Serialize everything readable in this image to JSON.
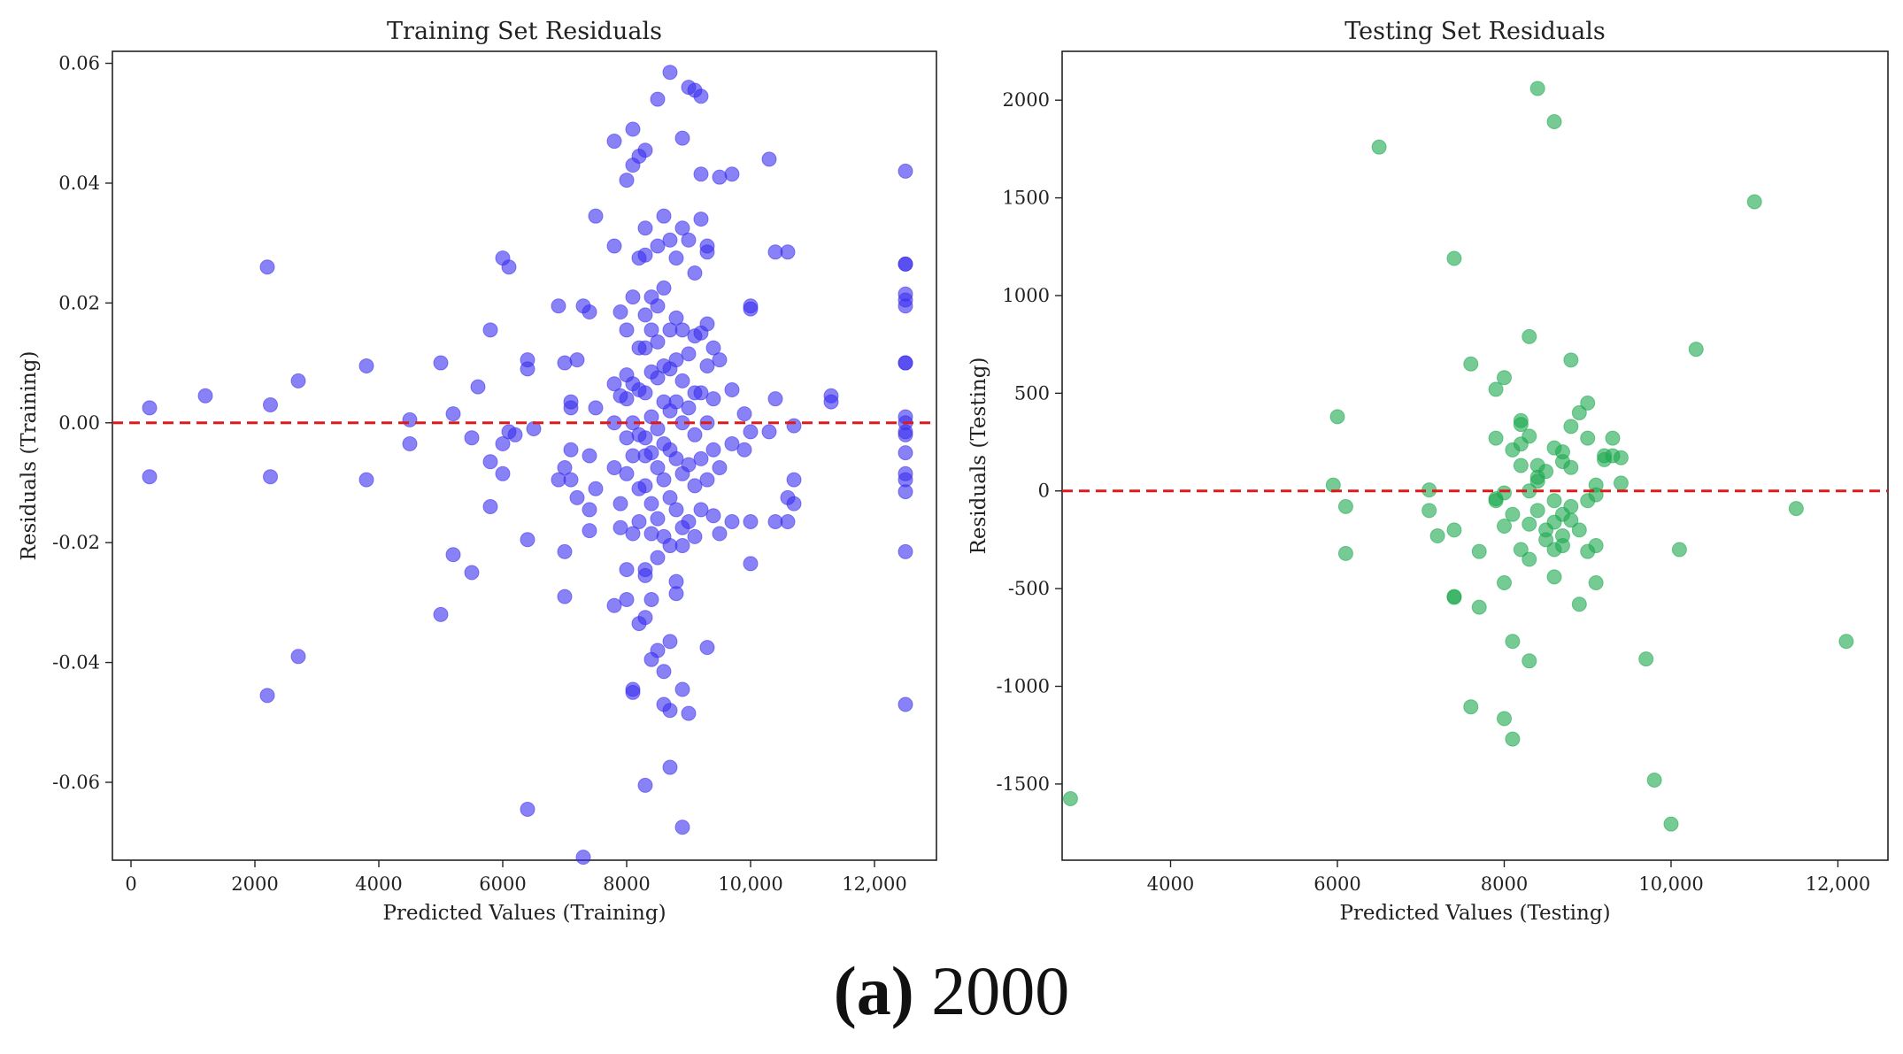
{
  "chart_data": [
    {
      "type": "scatter",
      "title": "Training Set Residuals",
      "xlabel": "Predicted Values (Training)",
      "ylabel": "Residuals (Training)",
      "xlim": [
        -300,
        13000
      ],
      "ylim": [
        -0.073,
        0.062
      ],
      "xticks": [
        0,
        2000,
        4000,
        6000,
        8000,
        10000,
        12000
      ],
      "xtick_labels": [
        "0",
        "2000",
        "4000",
        "6000",
        "8000",
        "10,000",
        "12,000"
      ],
      "yticks": [
        0.06,
        0.04,
        0.02,
        0.0,
        -0.02,
        -0.04,
        -0.06
      ],
      "ytick_labels": [
        "0.06",
        "0.04",
        "0.02",
        "0.00",
        "-0.02",
        "-0.04",
        "-0.06"
      ],
      "reference_line": 0,
      "color": "#3a2ff0",
      "line_color": "#e01a1a",
      "points": [
        [
          300,
          0.0025
        ],
        [
          300,
          -0.009
        ],
        [
          1200,
          0.0045
        ],
        [
          2200,
          0.026
        ],
        [
          2250,
          0.003
        ],
        [
          2250,
          -0.009
        ],
        [
          2200,
          -0.0455
        ],
        [
          2700,
          0.007
        ],
        [
          2700,
          -0.039
        ],
        [
          3800,
          0.0095
        ],
        [
          3800,
          -0.0095
        ],
        [
          4500,
          0.0005
        ],
        [
          4500,
          -0.0035
        ],
        [
          5000,
          0.01
        ],
        [
          5000,
          -0.032
        ],
        [
          5200,
          0.0015
        ],
        [
          5200,
          -0.022
        ],
        [
          5500,
          -0.0025
        ],
        [
          5500,
          -0.025
        ],
        [
          5600,
          0.006
        ],
        [
          5800,
          0.0155
        ],
        [
          5800,
          -0.0065
        ],
        [
          5800,
          -0.014
        ],
        [
          6000,
          0.0275
        ],
        [
          6100,
          0.026
        ],
        [
          6000,
          -0.0035
        ],
        [
          6000,
          -0.0085
        ],
        [
          6100,
          -0.0015
        ],
        [
          6200,
          -0.002
        ],
        [
          6400,
          0.0105
        ],
        [
          6400,
          0.009
        ],
        [
          6400,
          -0.0195
        ],
        [
          6400,
          -0.0645
        ],
        [
          6500,
          -0.001
        ],
        [
          6900,
          0.0195
        ],
        [
          6900,
          -0.0095
        ],
        [
          7000,
          0.01
        ],
        [
          7000,
          -0.0075
        ],
        [
          7000,
          -0.0215
        ],
        [
          7000,
          -0.029
        ],
        [
          7100,
          0.0025
        ],
        [
          7100,
          0.0035
        ],
        [
          7100,
          -0.0045
        ],
        [
          7100,
          -0.0095
        ],
        [
          7200,
          0.0105
        ],
        [
          7200,
          -0.0125
        ],
        [
          7300,
          0.0195
        ],
        [
          7300,
          -0.0725
        ],
        [
          7400,
          0.0185
        ],
        [
          7400,
          -0.018
        ],
        [
          7400,
          -0.0145
        ],
        [
          7400,
          -0.0055
        ],
        [
          7500,
          0.0345
        ],
        [
          7500,
          0.0025
        ],
        [
          7500,
          -0.011
        ],
        [
          7800,
          0.047
        ],
        [
          7800,
          0.0295
        ],
        [
          7800,
          0.0065
        ],
        [
          7800,
          0.0
        ],
        [
          7800,
          -0.0075
        ],
        [
          7800,
          -0.0305
        ],
        [
          7900,
          0.0185
        ],
        [
          7900,
          0.0045
        ],
        [
          7900,
          -0.0135
        ],
        [
          7900,
          -0.0175
        ],
        [
          8000,
          0.0405
        ],
        [
          8000,
          0.0155
        ],
        [
          8000,
          0.008
        ],
        [
          8000,
          0.004
        ],
        [
          8000,
          -0.0025
        ],
        [
          8000,
          -0.0085
        ],
        [
          8000,
          -0.0245
        ],
        [
          8000,
          -0.0295
        ],
        [
          8100,
          0.049
        ],
        [
          8100,
          0.043
        ],
        [
          8100,
          0.021
        ],
        [
          8100,
          0.0065
        ],
        [
          8100,
          0.0
        ],
        [
          8100,
          -0.0055
        ],
        [
          8100,
          -0.0185
        ],
        [
          8100,
          -0.0445
        ],
        [
          8100,
          -0.045
        ],
        [
          8200,
          0.0445
        ],
        [
          8200,
          0.0275
        ],
        [
          8200,
          0.0125
        ],
        [
          8200,
          0.0055
        ],
        [
          8200,
          -0.002
        ],
        [
          8200,
          -0.011
        ],
        [
          8200,
          -0.0335
        ],
        [
          8200,
          -0.0165
        ],
        [
          8300,
          0.0455
        ],
        [
          8300,
          0.0325
        ],
        [
          8300,
          0.028
        ],
        [
          8300,
          0.018
        ],
        [
          8300,
          0.0125
        ],
        [
          8300,
          0.005
        ],
        [
          8300,
          -0.0025
        ],
        [
          8300,
          -0.0055
        ],
        [
          8300,
          -0.0105
        ],
        [
          8300,
          -0.0245
        ],
        [
          8300,
          -0.0255
        ],
        [
          8300,
          -0.0325
        ],
        [
          8300,
          -0.0605
        ],
        [
          8400,
          0.021
        ],
        [
          8400,
          0.0155
        ],
        [
          8400,
          0.0085
        ],
        [
          8400,
          0.001
        ],
        [
          8400,
          -0.005
        ],
        [
          8400,
          -0.0135
        ],
        [
          8400,
          -0.0185
        ],
        [
          8400,
          -0.0395
        ],
        [
          8400,
          -0.0295
        ],
        [
          8500,
          0.054
        ],
        [
          8500,
          0.0295
        ],
        [
          8500,
          0.0195
        ],
        [
          8500,
          0.0135
        ],
        [
          8500,
          0.0075
        ],
        [
          8500,
          -0.001
        ],
        [
          8500,
          -0.0075
        ],
        [
          8500,
          -0.016
        ],
        [
          8500,
          -0.0225
        ],
        [
          8500,
          -0.038
        ],
        [
          8600,
          0.0345
        ],
        [
          8600,
          0.0225
        ],
        [
          8600,
          0.0095
        ],
        [
          8600,
          0.0035
        ],
        [
          8600,
          -0.0035
        ],
        [
          8600,
          -0.0095
        ],
        [
          8600,
          -0.019
        ],
        [
          8600,
          -0.0415
        ],
        [
          8600,
          -0.047
        ],
        [
          8700,
          0.0585
        ],
        [
          8700,
          0.0305
        ],
        [
          8700,
          0.0155
        ],
        [
          8700,
          0.009
        ],
        [
          8700,
          0.002
        ],
        [
          8700,
          -0.0045
        ],
        [
          8700,
          -0.0125
        ],
        [
          8700,
          -0.0205
        ],
        [
          8700,
          -0.0365
        ],
        [
          8700,
          -0.048
        ],
        [
          8700,
          -0.0575
        ],
        [
          8800,
          0.0275
        ],
        [
          8800,
          0.0175
        ],
        [
          8800,
          0.0105
        ],
        [
          8800,
          0.0035
        ],
        [
          8800,
          -0.006
        ],
        [
          8800,
          -0.0145
        ],
        [
          8800,
          -0.0265
        ],
        [
          8800,
          -0.0285
        ],
        [
          8900,
          0.0475
        ],
        [
          8900,
          0.0325
        ],
        [
          8900,
          0.0155
        ],
        [
          8900,
          0.007
        ],
        [
          8900,
          0.0
        ],
        [
          8900,
          -0.0085
        ],
        [
          8900,
          -0.0175
        ],
        [
          8900,
          -0.0205
        ],
        [
          8900,
          -0.0445
        ],
        [
          8900,
          -0.0675
        ],
        [
          9000,
          0.056
        ],
        [
          9000,
          0.0305
        ],
        [
          9000,
          0.0115
        ],
        [
          9000,
          0.0025
        ],
        [
          9000,
          -0.007
        ],
        [
          9000,
          -0.0165
        ],
        [
          9000,
          -0.0485
        ],
        [
          9100,
          0.0555
        ],
        [
          9100,
          0.025
        ],
        [
          9100,
          0.0145
        ],
        [
          9100,
          0.005
        ],
        [
          9100,
          -0.002
        ],
        [
          9100,
          -0.0105
        ],
        [
          9100,
          -0.019
        ],
        [
          9200,
          0.0545
        ],
        [
          9200,
          0.0415
        ],
        [
          9200,
          0.034
        ],
        [
          9200,
          0.015
        ],
        [
          9200,
          0.005
        ],
        [
          9200,
          -0.006
        ],
        [
          9200,
          -0.0145
        ],
        [
          9300,
          0.0295
        ],
        [
          9300,
          0.0285
        ],
        [
          9300,
          0.0165
        ],
        [
          9300,
          0.0095
        ],
        [
          9300,
          0.0
        ],
        [
          9300,
          -0.0095
        ],
        [
          9300,
          -0.0375
        ],
        [
          9400,
          0.0125
        ],
        [
          9400,
          0.004
        ],
        [
          9400,
          -0.0045
        ],
        [
          9400,
          -0.0155
        ],
        [
          9500,
          0.041
        ],
        [
          9500,
          0.0105
        ],
        [
          9500,
          -0.0075
        ],
        [
          9500,
          -0.0185
        ],
        [
          9700,
          0.0415
        ],
        [
          9700,
          0.0055
        ],
        [
          9700,
          -0.0035
        ],
        [
          9700,
          -0.0165
        ],
        [
          9900,
          0.0015
        ],
        [
          9900,
          -0.0045
        ],
        [
          10000,
          0.019
        ],
        [
          10000,
          0.0195
        ],
        [
          10000,
          -0.0015
        ],
        [
          10000,
          -0.0165
        ],
        [
          10000,
          -0.0235
        ],
        [
          10300,
          0.044
        ],
        [
          10300,
          -0.0015
        ],
        [
          10400,
          0.0285
        ],
        [
          10400,
          0.004
        ],
        [
          10400,
          -0.0165
        ],
        [
          10600,
          0.0285
        ],
        [
          10600,
          -0.0125
        ],
        [
          10600,
          -0.0165
        ],
        [
          10700,
          -0.0005
        ],
        [
          10700,
          -0.0095
        ],
        [
          10700,
          -0.0135
        ],
        [
          11300,
          0.0045
        ],
        [
          11300,
          0.0035
        ],
        [
          12500,
          0.042
        ],
        [
          12500,
          0.0265
        ],
        [
          12500,
          0.0265
        ],
        [
          12500,
          0.0215
        ],
        [
          12500,
          0.0205
        ],
        [
          12500,
          0.0195
        ],
        [
          12500,
          0.01
        ],
        [
          12500,
          0.01
        ],
        [
          12500,
          0.001
        ],
        [
          12500,
          0.0
        ],
        [
          12500,
          -0.0015
        ],
        [
          12500,
          -0.002
        ],
        [
          12500,
          -0.005
        ],
        [
          12500,
          -0.0085
        ],
        [
          12500,
          -0.0095
        ],
        [
          12500,
          -0.0115
        ],
        [
          12500,
          -0.0215
        ],
        [
          12500,
          -0.047
        ]
      ]
    },
    {
      "type": "scatter",
      "title": "Testing Set Residuals",
      "xlabel": "Predicted Values (Testing)",
      "ylabel": "Residuals (Testing)",
      "xlim": [
        2700,
        12600
      ],
      "ylim": [
        -1890,
        2250
      ],
      "xticks": [
        4000,
        6000,
        8000,
        10000,
        12000
      ],
      "xtick_labels": [
        "4000",
        "6000",
        "8000",
        "10,000",
        "12,000"
      ],
      "yticks": [
        2000,
        1500,
        1000,
        500,
        0,
        -500,
        -1000,
        -1500
      ],
      "ytick_labels": [
        "2000",
        "1500",
        "1000",
        "500",
        "0",
        "-500",
        "-1000",
        "-1500"
      ],
      "reference_line": 0,
      "color": "#1aa84c",
      "line_color": "#e01a1a",
      "points": [
        [
          2800,
          -1575
        ],
        [
          6000,
          380
        ],
        [
          5950,
          30
        ],
        [
          6100,
          -80
        ],
        [
          6100,
          -320
        ],
        [
          6500,
          1760
        ],
        [
          7100,
          5
        ],
        [
          7100,
          -100
        ],
        [
          7200,
          -230
        ],
        [
          7400,
          1190
        ],
        [
          7400,
          -200
        ],
        [
          7400,
          -540
        ],
        [
          7400,
          -545
        ],
        [
          7600,
          650
        ],
        [
          7600,
          -1105
        ],
        [
          7700,
          -310
        ],
        [
          7700,
          -595
        ],
        [
          7900,
          520
        ],
        [
          7900,
          270
        ],
        [
          7900,
          -40
        ],
        [
          7900,
          -50
        ],
        [
          8000,
          580
        ],
        [
          8000,
          -10
        ],
        [
          8000,
          -180
        ],
        [
          8000,
          -470
        ],
        [
          8000,
          -1165
        ],
        [
          8100,
          210
        ],
        [
          8100,
          -120
        ],
        [
          8100,
          -770
        ],
        [
          8100,
          -1270
        ],
        [
          8200,
          360
        ],
        [
          8200,
          340
        ],
        [
          8200,
          240
        ],
        [
          8200,
          130
        ],
        [
          8200,
          -300
        ],
        [
          8300,
          790
        ],
        [
          8300,
          280
        ],
        [
          8300,
          0
        ],
        [
          8300,
          -170
        ],
        [
          8300,
          -350
        ],
        [
          8300,
          -870
        ],
        [
          8400,
          2060
        ],
        [
          8400,
          130
        ],
        [
          8400,
          70
        ],
        [
          8400,
          50
        ],
        [
          8400,
          -100
        ],
        [
          8500,
          100
        ],
        [
          8500,
          -200
        ],
        [
          8500,
          -250
        ],
        [
          8600,
          1890
        ],
        [
          8600,
          220
        ],
        [
          8600,
          -50
        ],
        [
          8600,
          -160
        ],
        [
          8600,
          -300
        ],
        [
          8600,
          -440
        ],
        [
          8700,
          200
        ],
        [
          8700,
          150
        ],
        [
          8700,
          -120
        ],
        [
          8700,
          -230
        ],
        [
          8700,
          -280
        ],
        [
          8800,
          670
        ],
        [
          8800,
          330
        ],
        [
          8800,
          120
        ],
        [
          8800,
          -80
        ],
        [
          8800,
          -150
        ],
        [
          8900,
          400
        ],
        [
          8900,
          -200
        ],
        [
          8900,
          -580
        ],
        [
          9000,
          450
        ],
        [
          9000,
          270
        ],
        [
          9000,
          -50
        ],
        [
          9000,
          -310
        ],
        [
          9100,
          30
        ],
        [
          9100,
          -20
        ],
        [
          9100,
          -280
        ],
        [
          9100,
          -470
        ],
        [
          9200,
          160
        ],
        [
          9200,
          180
        ],
        [
          9300,
          180
        ],
        [
          9300,
          270
        ],
        [
          9400,
          40
        ],
        [
          9400,
          170
        ],
        [
          9700,
          -860
        ],
        [
          9800,
          -1480
        ],
        [
          10000,
          -1705
        ],
        [
          10100,
          -300
        ],
        [
          10300,
          725
        ],
        [
          11000,
          1480
        ],
        [
          11500,
          -90
        ],
        [
          12100,
          -770
        ]
      ]
    }
  ],
  "caption": {
    "label": "(a)",
    "year": "2000"
  }
}
